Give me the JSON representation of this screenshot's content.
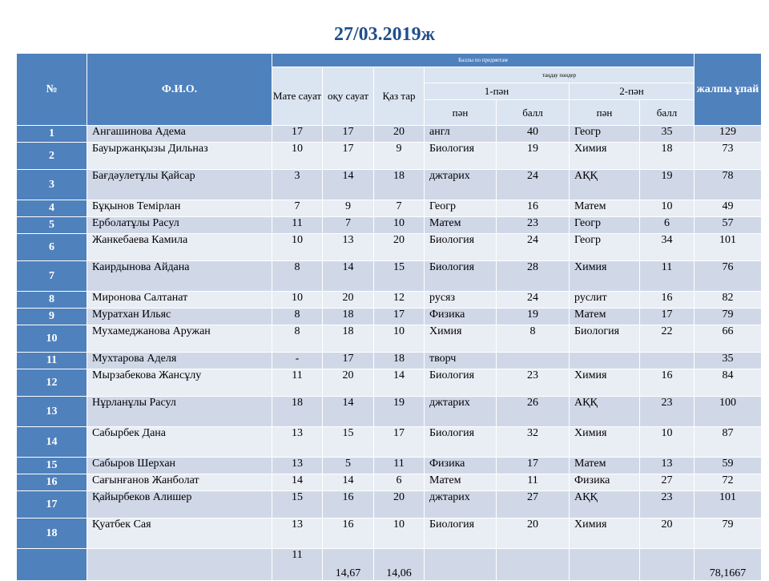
{
  "title": "27/03.2019ж",
  "header": {
    "no": "№",
    "fio": "Ф.И.О.",
    "scores_group": "Баллы по предметам",
    "elective_group": "таңдау пәндер",
    "math": "Мате сауат",
    "reading": "оқу сауат",
    "history": "Қаз тар",
    "subj1": "1-пән",
    "subj2": "2-пән",
    "pan": "пән",
    "ball": "балл",
    "total": "жалпы ұпай"
  },
  "rows": [
    {
      "no": "1",
      "name": "Ангашинова Адема",
      "math": "17",
      "read": "17",
      "hist": "20",
      "s1": "англ",
      "b1": "40",
      "s2": "Геогр",
      "b2": "35",
      "total": "129"
    },
    {
      "no": "2",
      "name": "Бауыржанқызы Дильназ",
      "math": "10",
      "read": "17",
      "hist": "9",
      "s1": "Биология",
      "b1": "19",
      "s2": "Химия",
      "b2": "18",
      "total": "73"
    },
    {
      "no": "3",
      "name": "Бағдәулетұлы Қайсар",
      "math": "3",
      "read": "14",
      "hist": "18",
      "s1": "джтарих",
      "b1": "24",
      "s2": "АҚҚ",
      "b2": "19",
      "total": "78"
    },
    {
      "no": "4",
      "name": "Бұқынов Темірлан",
      "math": "7",
      "read": "9",
      "hist": "7",
      "s1": "Геогр",
      "b1": "16",
      "s2": "Матем",
      "b2": "10",
      "total": "49"
    },
    {
      "no": "5",
      "name": "Ерболатұлы Расул",
      "math": "11",
      "read": "7",
      "hist": "10",
      "s1": "Матем",
      "b1": "23",
      "s2": "Геогр",
      "b2": "6",
      "total": "57"
    },
    {
      "no": "6",
      "name": "Жанкебаева Камила",
      "math": "10",
      "read": "13",
      "hist": "20",
      "s1": "Биология",
      "b1": "24",
      "s2": "Геогр",
      "b2": "34",
      "total": "101"
    },
    {
      "no": "7",
      "name": "Каирдынова Айдана",
      "math": "8",
      "read": "14",
      "hist": "15",
      "s1": "Биология",
      "b1": "28",
      "s2": "Химия",
      "b2": "11",
      "total": "76"
    },
    {
      "no": "8",
      "name": "Миронова Салтанат",
      "math": "10",
      "read": "20",
      "hist": "12",
      "s1": "русяз",
      "b1": "24",
      "s2": "руслит",
      "b2": "16",
      "total": "82"
    },
    {
      "no": "9",
      "name": "Муратхан Ильяс",
      "math": "8",
      "read": "18",
      "hist": "17",
      "s1": "Физика",
      "b1": "19",
      "s2": "Матем",
      "b2": "17",
      "total": "79"
    },
    {
      "no": "10",
      "name": "Мухамеджанова Аружан",
      "math": "8",
      "read": "18",
      "hist": "10",
      "s1": "Химия",
      "b1": "8",
      "s2": "Биология",
      "b2": "22",
      "total": "66"
    },
    {
      "no": "11",
      "name": "Мухтарова Аделя",
      "math": "-",
      "read": "17",
      "hist": "18",
      "s1": "творч",
      "b1": "",
      "s2": "",
      "b2": "",
      "total": "35"
    },
    {
      "no": "12",
      "name": "Мырзабекова Жансұлу",
      "math": "11",
      "read": "20",
      "hist": "14",
      "s1": "Биология",
      "b1": "23",
      "s2": "Химия",
      "b2": "16",
      "total": "84"
    },
    {
      "no": "13",
      "name": "Нұрланұлы Расул",
      "math": "18",
      "read": "14",
      "hist": "19",
      "s1": "джтарих",
      "b1": "26",
      "s2": "АҚҚ",
      "b2": "23",
      "total": "100"
    },
    {
      "no": "14",
      "name": "Сабырбек Дана",
      "math": "13",
      "read": "15",
      "hist": "17",
      "s1": "Биология",
      "b1": "32",
      "s2": "Химия",
      "b2": "10",
      "total": "87"
    },
    {
      "no": "15",
      "name": "Сабыров Шерхан",
      "math": "13",
      "read": "5",
      "hist": "11",
      "s1": "Физика",
      "b1": "17",
      "s2": "Матем",
      "b2": "13",
      "total": "59"
    },
    {
      "no": "16",
      "name": "Сағынғанов Жанболат",
      "math": "14",
      "read": "14",
      "hist": "6",
      "s1": "Матем",
      "b1": "11",
      "s2": "Физика",
      "b2": "27",
      "total": "72"
    },
    {
      "no": "17",
      "name": "Қайырбеков   Алишер",
      "math": "15",
      "read": "16",
      "hist": "20",
      "s1": "джтарих",
      "b1": "27",
      "s2": "АҚҚ",
      "b2": "23",
      "total": "101"
    },
    {
      "no": "18",
      "name": "Қуатбек Сая",
      "math": "13",
      "read": "16",
      "hist": "10",
      "s1": "Биология",
      "b1": "20",
      "s2": "Химия",
      "b2": "20",
      "total": "79"
    }
  ],
  "footer": {
    "math": "11",
    "read": "14,67",
    "hist": "14,06",
    "total": "78,1667"
  }
}
